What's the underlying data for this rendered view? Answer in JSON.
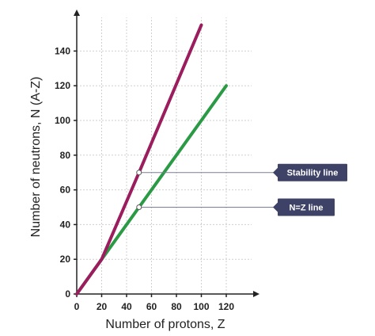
{
  "chart_data": {
    "type": "line",
    "xlabel": "Number of protons, Z",
    "ylabel": "Number of neutrons, N (A-Z)",
    "xlim": [
      0,
      140
    ],
    "ylim": [
      0,
      160
    ],
    "xticks": [
      0,
      20,
      40,
      60,
      80,
      100,
      120
    ],
    "yticks": [
      0,
      20,
      40,
      60,
      80,
      100,
      120,
      140
    ],
    "grid": true,
    "series": [
      {
        "name": "Stability line",
        "color": "#9b1d5e",
        "x": [
          0,
          20,
          50,
          100
        ],
        "y": [
          0,
          20,
          70,
          155
        ]
      },
      {
        "name": "N=Z line",
        "color": "#2a9a45",
        "x": [
          0,
          120
        ],
        "y": [
          0,
          120
        ]
      }
    ],
    "annotations": [
      {
        "label": "Stability line",
        "series": 0,
        "x": 50,
        "y": 70
      },
      {
        "label": "N=Z line",
        "series": 1,
        "x": 50,
        "y": 50
      }
    ]
  }
}
